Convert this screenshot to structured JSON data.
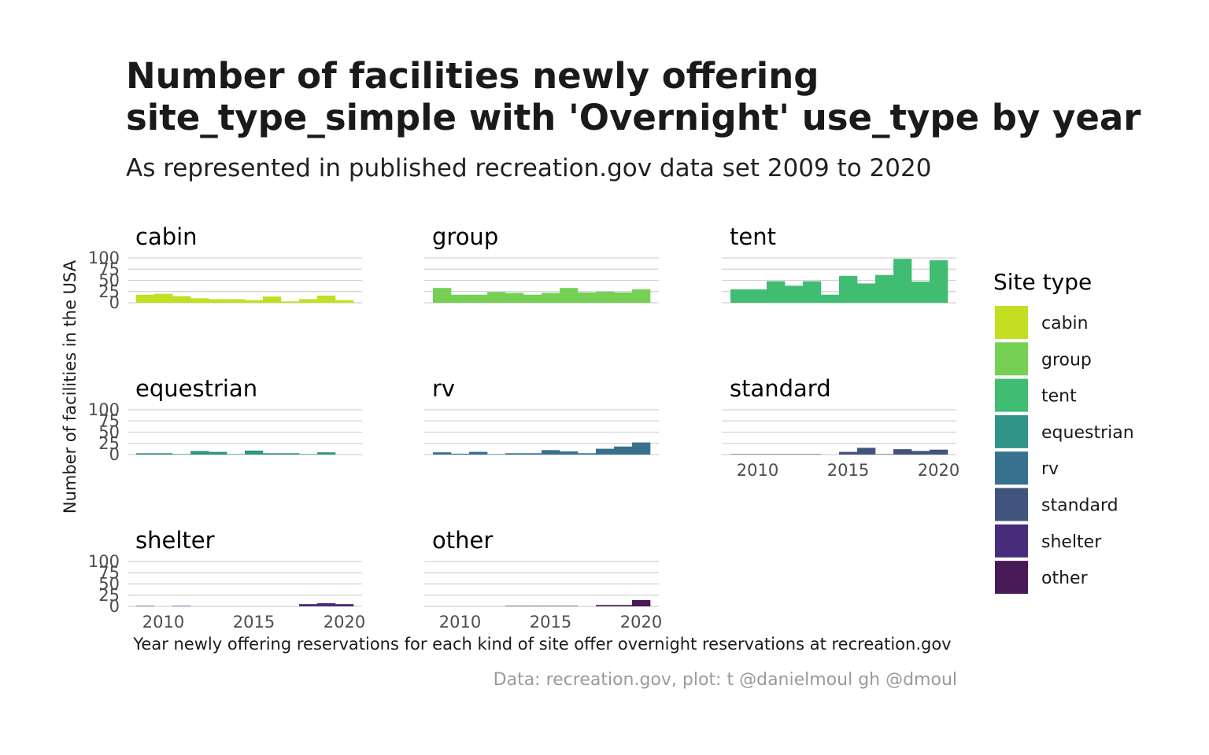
{
  "title_lines": [
    "Number of facilities newly offering",
    "site_type_simple with 'Overnight' use_type by year"
  ],
  "subtitle": "As represented in published recreation.gov data set 2009 to 2020",
  "caption": "Data: recreation.gov, plot: t @danielmoul gh @dmoul",
  "chart_data": {
    "type": "bar",
    "facet_layout": "wrap 3 columns",
    "xlabel": "Year newly offering reservations for each kind of site offer overnight reservations at recreation.gov",
    "ylabel": "Number of facilities in the USA",
    "x": [
      2009,
      2010,
      2011,
      2012,
      2013,
      2014,
      2015,
      2016,
      2017,
      2018,
      2019,
      2020
    ],
    "xticks": [
      2010,
      2015,
      2020
    ],
    "yticks": [
      0,
      25,
      50,
      75,
      100
    ],
    "ylim": [
      0,
      100
    ],
    "grid": "horizontal",
    "legend_title": "Site type",
    "legend_position": "right",
    "series": [
      {
        "name": "cabin",
        "color": "#c2df23",
        "values": [
          18,
          20,
          15,
          10,
          8,
          8,
          6,
          14,
          3,
          8,
          16,
          6
        ]
      },
      {
        "name": "group",
        "color": "#75d054",
        "values": [
          33,
          18,
          18,
          24,
          22,
          18,
          22,
          33,
          23,
          25,
          23,
          30
        ]
      },
      {
        "name": "tent",
        "color": "#40bd72",
        "values": [
          30,
          30,
          48,
          38,
          48,
          18,
          60,
          43,
          62,
          98,
          47,
          95
        ]
      },
      {
        "name": "equestrian",
        "color": "#2f9487",
        "values": [
          3,
          3,
          1,
          8,
          6,
          1,
          9,
          3,
          3,
          1,
          5,
          0
        ]
      },
      {
        "name": "rv",
        "color": "#37718e",
        "values": [
          5,
          2,
          6,
          1,
          3,
          3,
          10,
          7,
          3,
          13,
          18,
          27
        ]
      },
      {
        "name": "standard",
        "color": "#41537f",
        "values": [
          1,
          1,
          1,
          1,
          1,
          0,
          6,
          15,
          1,
          12,
          8,
          11
        ]
      },
      {
        "name": "shelter",
        "color": "#472d7b",
        "values": [
          1,
          0,
          1,
          0,
          0,
          0,
          0,
          0,
          0,
          5,
          7,
          5
        ]
      },
      {
        "name": "other",
        "color": "#481a56",
        "values": [
          0,
          0,
          0,
          0,
          1,
          1,
          1,
          1,
          0,
          3,
          3,
          14
        ]
      }
    ]
  }
}
